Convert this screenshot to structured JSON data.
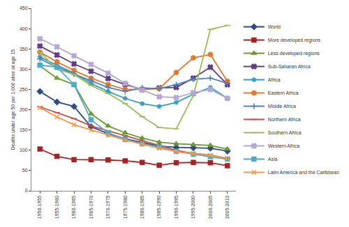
{
  "chart_data": {
    "type": "line",
    "y_label": "Deaths under age 50 per 1,000 alive at age 15",
    "categories": [
      "1950-1955",
      "1955-1960",
      "1960-1965",
      "1965-1970",
      "1970-1975",
      "1975-1980",
      "1980-1985",
      "1985-1990",
      "1990-1995",
      "1995-2000",
      "2000-2005",
      "2005-2010"
    ],
    "series": [
      {
        "name": "World",
        "color": "#2E4A8B",
        "marker": "diamond",
        "values": [
          245,
          219,
          208,
          158,
          141,
          128,
          119,
          110,
          107,
          106,
          105,
          98
        ]
      },
      {
        "name": "More developed regions",
        "color": "#A32626",
        "marker": "square",
        "values": [
          103,
          85,
          77,
          77,
          76,
          74,
          70,
          63,
          69,
          70,
          69,
          62
        ]
      },
      {
        "name": "Less developed regions",
        "color": "#6B9A2E",
        "marker": "triangle-up",
        "values": [
          308,
          278,
          262,
          190,
          160,
          143,
          130,
          120,
          116,
          114,
          112,
          103
        ]
      },
      {
        "name": "Sub-Saharan Africa",
        "color": "#5E3C88",
        "marker": "x",
        "values": [
          357,
          335,
          313,
          295,
          277,
          262,
          250,
          254,
          255,
          278,
          305,
          262
        ]
      },
      {
        "name": "Africa",
        "color": "#2FA0C0",
        "marker": "asterisk-open",
        "values": [
          330,
          310,
          290,
          265,
          245,
          228,
          215,
          208,
          218,
          238,
          255,
          228
        ]
      },
      {
        "name": "Eastern Africa",
        "color": "#E07A30",
        "marker": "circle",
        "values": [
          342,
          318,
          297,
          278,
          262,
          250,
          250,
          252,
          292,
          328,
          336,
          270
        ]
      },
      {
        "name": "Middle Africa",
        "color": "#4F81BD",
        "marker": "cross-thin-open",
        "values": [
          325,
          305,
          288,
          272,
          255,
          245,
          254,
          252,
          262,
          275,
          278,
          265
        ]
      },
      {
        "name": "Northern Africa",
        "color": "#C0504D",
        "marker": "line-ew-open",
        "values": [
          207,
          193,
          178,
          160,
          148,
          136,
          123,
          112,
          100,
          92,
          88,
          80
        ]
      },
      {
        "name": "Southern Africa",
        "color": "#9BBB59",
        "marker": "line-ew-open",
        "values": [
          342,
          300,
          287,
          260,
          240,
          215,
          183,
          156,
          153,
          235,
          398,
          408
        ]
      },
      {
        "name": "Western Africa",
        "color": "#B4A7D6",
        "marker": "x",
        "values": [
          375,
          355,
          333,
          312,
          290,
          265,
          248,
          232,
          230,
          242,
          250,
          228
        ]
      },
      {
        "name": "Asia",
        "color": "#4BACC6",
        "marker": "square",
        "values": [
          310,
          305,
          262,
          175,
          143,
          127,
          116,
          108,
          97,
          90,
          84,
          78
        ]
      },
      {
        "name": "Latin America and the Caribbean",
        "color": "#F79646",
        "marker": "x-thin-open",
        "values": [
          205,
          182,
          163,
          150,
          137,
          125,
          115,
          105,
          97,
          92,
          88,
          80
        ]
      }
    ],
    "ylim": [
      0,
      450
    ],
    "yticks": [
      0,
      50,
      100,
      150,
      200,
      250,
      300,
      350,
      400,
      450
    ],
    "grid": false,
    "legend": "right"
  }
}
